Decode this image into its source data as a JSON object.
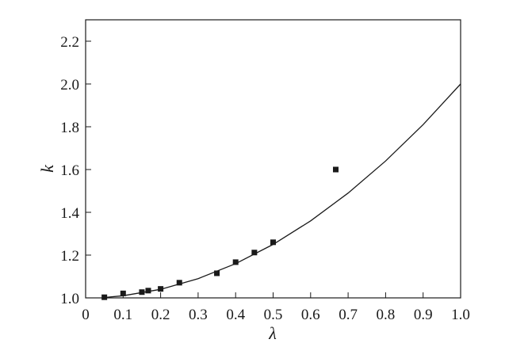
{
  "chart_data": {
    "type": "scatter",
    "xlabel": "λ",
    "ylabel": "k",
    "xlim": [
      0,
      1.0
    ],
    "ylim": [
      1.0,
      2.3
    ],
    "x_ticks": [
      0,
      0.1,
      0.2,
      0.3,
      0.4,
      0.5,
      0.6,
      0.7,
      0.8,
      0.9,
      1.0
    ],
    "x_tick_labels": [
      "0",
      "0.1",
      "0.2",
      "0.3",
      "0.4",
      "0.5",
      "0.6",
      "0.7",
      "0.8",
      "0.9",
      "1.0"
    ],
    "y_ticks": [
      1.0,
      1.2,
      1.4,
      1.6,
      1.8,
      2.0,
      2.2
    ],
    "y_tick_labels": [
      "1.0",
      "1.2",
      "1.4",
      "1.6",
      "1.8",
      "2.0",
      "2.2"
    ],
    "grid": false,
    "series": [
      {
        "kind": "points",
        "marker": "square",
        "x": [
          0.05,
          0.1,
          0.15,
          0.167,
          0.2,
          0.25,
          0.35,
          0.4,
          0.45,
          0.5,
          0.667
        ],
        "y": [
          1.003,
          1.021,
          1.027,
          1.034,
          1.042,
          1.071,
          1.115,
          1.167,
          1.212,
          1.26,
          1.6
        ]
      },
      {
        "kind": "curve",
        "x": [
          0.05,
          0.1,
          0.2,
          0.3,
          0.4,
          0.5,
          0.6,
          0.7,
          0.8,
          0.9,
          1.0
        ],
        "y": [
          1.002,
          1.01,
          1.04,
          1.09,
          1.16,
          1.25,
          1.36,
          1.49,
          1.64,
          1.81,
          2.0
        ]
      }
    ]
  }
}
